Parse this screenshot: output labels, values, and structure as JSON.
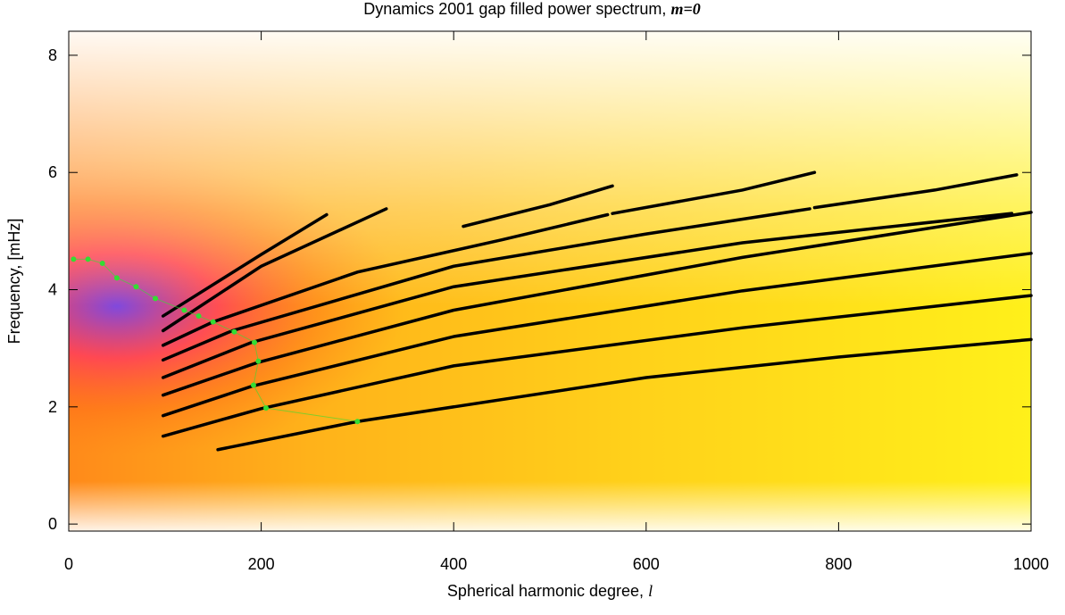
{
  "chart_data": {
    "type": "line",
    "title": "Dynamics 2001 gap filled power spectrum,",
    "title_emphasis": "m=0",
    "x_label": "Spherical harmonic degree,",
    "x_label_symbol": "l",
    "y_label": "Frequency, [mHz]",
    "xlim": [
      0,
      1000
    ],
    "ylim": [
      -0.12,
      8.41
    ],
    "xticks": [
      0,
      200,
      400,
      600,
      800,
      1000
    ],
    "yticks": [
      0,
      2,
      4,
      6,
      8
    ],
    "series": [
      {
        "color": "#000000",
        "x": [
          155,
          300,
          600,
          800,
          1000
        ],
        "values": [
          1.27,
          1.75,
          2.5,
          2.85,
          3.15
        ]
      },
      {
        "color": "#000000",
        "x": [
          98,
          200,
          400,
          700,
          1000
        ],
        "values": [
          1.5,
          1.97,
          2.7,
          3.35,
          3.9
        ]
      },
      {
        "color": "#000000",
        "x": [
          98,
          190,
          400,
          700,
          1000
        ],
        "values": [
          1.85,
          2.35,
          3.2,
          3.98,
          4.62
        ]
      },
      {
        "color": "#000000",
        "x": [
          98,
          195,
          400,
          700,
          1000
        ],
        "values": [
          2.2,
          2.75,
          3.65,
          4.55,
          5.32
        ]
      },
      {
        "color": "#000000",
        "x": [
          98,
          190,
          400,
          700,
          980
        ],
        "values": [
          2.5,
          3.1,
          4.05,
          4.8,
          5.3
        ]
      },
      {
        "color": "#000000",
        "x": [
          98,
          170,
          400,
          600,
          770
        ],
        "values": [
          2.8,
          3.3,
          4.4,
          4.95,
          5.38
        ]
      },
      {
        "color": "#000000",
        "x": [
          98,
          150,
          300,
          450,
          560
        ],
        "values": [
          3.05,
          3.45,
          4.3,
          4.85,
          5.28
        ]
      },
      {
        "color": "#000000",
        "x": [
          565,
          700,
          775
        ],
        "values": [
          5.3,
          5.7,
          6.0
        ]
      },
      {
        "color": "#000000",
        "x": [
          775,
          900,
          985
        ],
        "values": [
          5.4,
          5.7,
          5.96
        ]
      },
      {
        "color": "#000000",
        "x": [
          410,
          500,
          565
        ],
        "values": [
          5.08,
          5.45,
          5.77
        ]
      },
      {
        "color": "#000000",
        "x": [
          98,
          200,
          330
        ],
        "values": [
          3.3,
          4.4,
          5.38
        ]
      },
      {
        "color": "#000000",
        "x": [
          98,
          200,
          268
        ],
        "values": [
          3.55,
          4.6,
          5.28
        ]
      }
    ],
    "points": {
      "color": "#33dd33",
      "x": [
        5,
        20,
        35,
        50,
        70,
        90,
        120,
        135,
        150,
        172,
        193,
        197,
        192,
        205,
        300
      ],
      "values": [
        4.52,
        4.52,
        4.45,
        4.2,
        4.05,
        3.85,
        3.65,
        3.55,
        3.45,
        3.28,
        3.1,
        2.78,
        2.37,
        1.98,
        1.75
      ]
    }
  }
}
